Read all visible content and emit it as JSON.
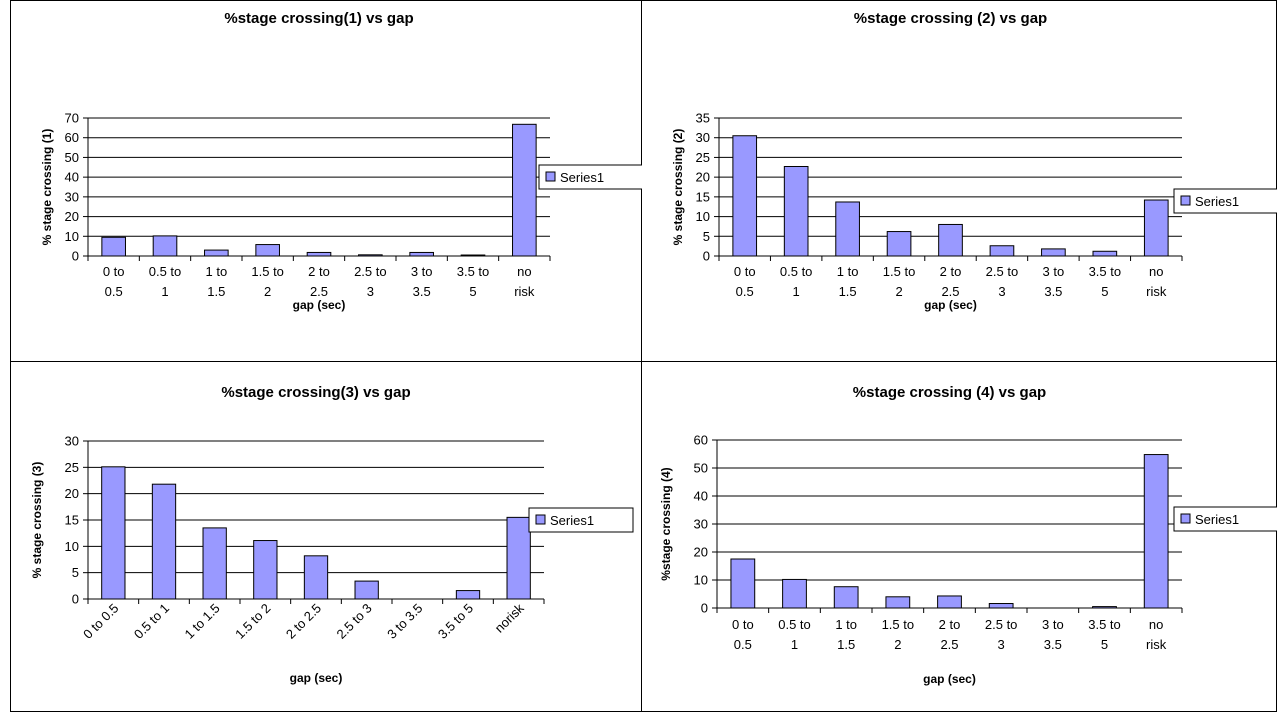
{
  "chart_data": [
    {
      "type": "bar",
      "title": "%stage crossing(1) vs gap",
      "xlabel": "gap (sec)",
      "ylabel": "% stage crossing (1)",
      "categories": [
        [
          "0 to",
          "0.5"
        ],
        [
          "0.5 to",
          "1"
        ],
        [
          "1 to",
          "1.5"
        ],
        [
          "1.5 to",
          "2"
        ],
        [
          "2 to",
          "2.5"
        ],
        [
          "2.5 to",
          "3"
        ],
        [
          "3 to",
          "3.5"
        ],
        [
          "3.5 to",
          "5"
        ],
        [
          "no",
          "risk"
        ]
      ],
      "series": [
        {
          "name": "Series1",
          "values": [
            9.5,
            10.2,
            3,
            5.8,
            1.8,
            0.6,
            1.8,
            0.5,
            66.8
          ]
        }
      ],
      "ylim": [
        0,
        70
      ],
      "yticks": [
        "0",
        "10",
        "20",
        "30",
        "40",
        "50",
        "60",
        "70"
      ],
      "grid": true,
      "legend": "right",
      "bar_color": "#9999ff"
    },
    {
      "type": "bar",
      "title": "%stage crossing (2) vs gap",
      "xlabel": "gap (sec)",
      "ylabel": "% stage crossing (2)",
      "categories": [
        [
          "0 to",
          "0.5"
        ],
        [
          "0.5 to",
          "1"
        ],
        [
          "1 to",
          "1.5"
        ],
        [
          "1.5 to",
          "2"
        ],
        [
          "2 to",
          "2.5"
        ],
        [
          "2.5 to",
          "3"
        ],
        [
          "3 to",
          "3.5"
        ],
        [
          "3.5 to",
          "5"
        ],
        [
          "no",
          "risk"
        ]
      ],
      "series": [
        {
          "name": "Series1",
          "values": [
            30.5,
            22.7,
            13.7,
            6.2,
            8,
            2.6,
            1.8,
            1.2,
            14.2
          ]
        }
      ],
      "ylim": [
        0,
        35
      ],
      "yticks": [
        "0",
        "5",
        "10",
        "15",
        "20",
        "25",
        "30",
        "35"
      ],
      "grid": true,
      "legend": "right",
      "bar_color": "#9999ff"
    },
    {
      "type": "bar",
      "title": "%stage crossing(3) vs gap",
      "xlabel": "gap (sec)",
      "ylabel": "% stage crossing (3)",
      "categories": [
        "0 to 0.5",
        "0.5 to 1",
        "1 to 1.5",
        "1.5 to 2",
        "2 to 2.5",
        "2.5 to 3",
        "3 to 3.5",
        "3.5 to 5",
        "norisk"
      ],
      "series": [
        {
          "name": "Series1",
          "values": [
            25.1,
            21.8,
            13.5,
            11.1,
            8.2,
            3.4,
            0,
            1.6,
            15.5
          ]
        }
      ],
      "ylim": [
        0,
        30
      ],
      "yticks": [
        "0",
        "5",
        "10",
        "15",
        "20",
        "25",
        "30"
      ],
      "grid": true,
      "legend": "right",
      "rotated_labels": true,
      "bar_color": "#9999ff"
    },
    {
      "type": "bar",
      "title": "%stage crossing (4) vs gap",
      "xlabel": "gap (sec)",
      "ylabel": "%stage crossing (4)",
      "categories": [
        [
          "0 to",
          "0.5"
        ],
        [
          "0.5 to",
          "1"
        ],
        [
          "1 to",
          "1.5"
        ],
        [
          "1.5 to",
          "2"
        ],
        [
          "2 to",
          "2.5"
        ],
        [
          "2.5 to",
          "3"
        ],
        [
          "3 to",
          "3.5"
        ],
        [
          "3.5 to",
          "5"
        ],
        [
          "no",
          "risk"
        ]
      ],
      "series": [
        {
          "name": "Series1",
          "values": [
            17.5,
            10.2,
            7.6,
            4,
            4.3,
            1.6,
            0,
            0.5,
            54.8
          ]
        }
      ],
      "ylim": [
        0,
        60
      ],
      "yticks": [
        "0",
        "10",
        "20",
        "30",
        "40",
        "50",
        "60"
      ],
      "grid": true,
      "legend": "right",
      "bar_color": "#9999ff"
    }
  ]
}
